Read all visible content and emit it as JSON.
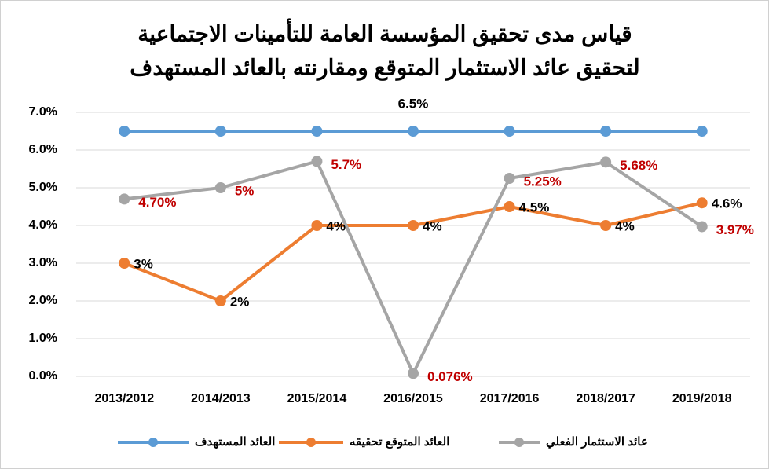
{
  "chart_data": {
    "type": "line",
    "title": [
      "قياس مدى تحقيق المؤسسة العامة للتأمينات الاجتماعية",
      "لتحقيق عائد الاستثمار المتوقع ومقارنته بالعائد المستهدف"
    ],
    "categories": [
      "2013/2012",
      "2014/2013",
      "2015/2014",
      "2016/2015",
      "2017/2016",
      "2018/2017",
      "2019/2018"
    ],
    "series": [
      {
        "name": "العائد المستهدف",
        "color": "#5b9bd5",
        "label_color": "#000000",
        "values": [
          6.5,
          6.5,
          6.5,
          6.5,
          6.5,
          6.5,
          6.5
        ],
        "value_labels": [
          null,
          null,
          null,
          "6.5%",
          null,
          null,
          null
        ]
      },
      {
        "name": "العائد المتوقع تحقيقه",
        "color": "#ed7d31",
        "label_color": "#000000",
        "values": [
          3,
          2,
          4,
          4,
          4.5,
          4,
          4.6
        ],
        "value_labels": [
          "3%",
          "2%",
          "4%",
          "4%",
          "4.5%",
          "4%",
          "4.6%"
        ]
      },
      {
        "name": "عائد الاستثمار الفعلي",
        "color": "#a5a5a5",
        "label_color": "#c00000",
        "values": [
          4.7,
          5,
          5.7,
          0.076,
          5.25,
          5.68,
          3.97
        ],
        "value_labels": [
          "4.70%",
          "5%",
          "5.7%",
          "0.076%",
          "5.25%",
          "5.68%",
          "3.97%"
        ]
      }
    ],
    "ylim": [
      0,
      7
    ],
    "yticks": [
      {
        "value": 0,
        "label": "0.0%"
      },
      {
        "value": 1,
        "label": "1.0%"
      },
      {
        "value": 2,
        "label": "2.0%"
      },
      {
        "value": 3,
        "label": "3.0%"
      },
      {
        "value": 4,
        "label": "4.0%"
      },
      {
        "value": 5,
        "label": "5.0%"
      },
      {
        "value": 6,
        "label": "6.0%"
      },
      {
        "value": 7,
        "label": "7.0%"
      }
    ],
    "grid": true,
    "legend": "bottom"
  }
}
